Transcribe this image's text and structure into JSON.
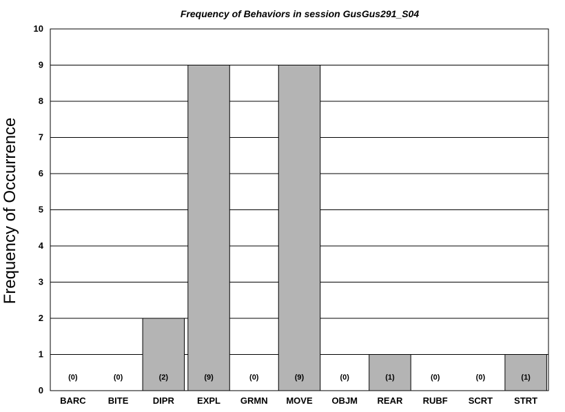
{
  "chart_data": {
    "type": "bar",
    "title": "Frequency of Behaviors in session GusGus291_S04",
    "xlabel": "",
    "ylabel": "Frequency of Occurrence",
    "categories": [
      "BARC",
      "BITE",
      "DIPR",
      "EXPL",
      "GRMN",
      "MOVE",
      "OBJM",
      "REAR",
      "RUBF",
      "SCRT",
      "STRT"
    ],
    "values": [
      0,
      0,
      2,
      9,
      0,
      9,
      0,
      1,
      0,
      0,
      1
    ],
    "data_labels": [
      "(0)",
      "(0)",
      "(2)",
      "(9)",
      "(0)",
      "(9)",
      "(0)",
      "(1)",
      "(0)",
      "(0)",
      "(1)"
    ],
    "ylim": [
      0,
      10
    ],
    "yticks": [
      "0",
      "1",
      "2",
      "3",
      "4",
      "5",
      "6",
      "7",
      "8",
      "9",
      "10"
    ],
    "grid": true,
    "legend": "none",
    "bar_color": "#b4b4b4",
    "bar_edge_color": "#000000",
    "grid_color": "#000000"
  }
}
